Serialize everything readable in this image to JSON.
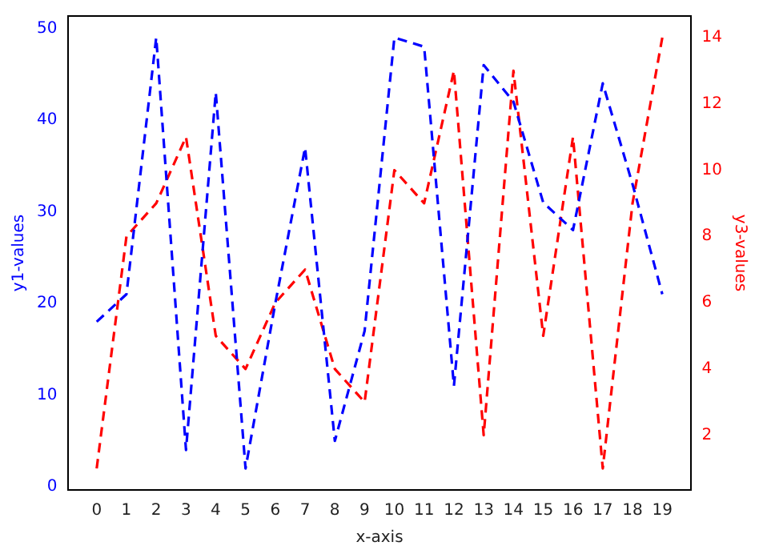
{
  "chart_data": {
    "type": "line",
    "xlabel": "x-axis",
    "ylabel": "y1-values",
    "y2label": "y3-values",
    "x": [
      0,
      1,
      2,
      3,
      4,
      5,
      6,
      7,
      8,
      9,
      10,
      11,
      12,
      13,
      14,
      15,
      16,
      17,
      18,
      19
    ],
    "series": [
      {
        "color": "#0000ff",
        "values": [
          18,
          21,
          49,
          4,
          43,
          2,
          20,
          37,
          5,
          17,
          49,
          48,
          11,
          46,
          42,
          31,
          28,
          44,
          33,
          21
        ]
      },
      {
        "color": "#ff0000",
        "axis": "y2",
        "values": [
          1,
          8,
          9,
          11,
          5,
          4,
          6,
          7,
          4,
          3,
          10,
          9,
          13,
          2,
          13,
          5,
          11,
          1,
          9,
          14
        ]
      }
    ],
    "xlim": [
      -0.95,
      19.95
    ],
    "xticks": [
      0,
      1,
      2,
      3,
      4,
      5,
      6,
      7,
      8,
      9,
      10,
      11,
      12,
      13,
      14,
      15,
      16,
      17,
      18,
      19
    ],
    "ylim": [
      -0.35,
      51.35
    ],
    "yticks": [
      0,
      10,
      20,
      30,
      40,
      50
    ],
    "y2lim": [
      0.35,
      14.65
    ],
    "y2ticks": [
      2,
      4,
      6,
      8,
      10,
      12,
      14
    ],
    "line_style": "dashed",
    "marker": "none",
    "grid": false,
    "legend": false
  }
}
